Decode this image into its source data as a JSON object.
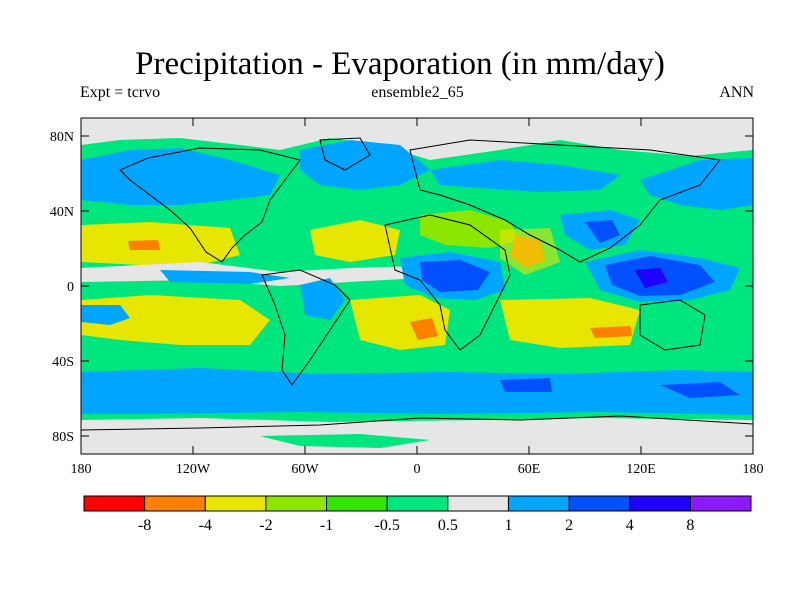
{
  "header": {
    "title": "Precipitation - Evaporation (in mm/day)",
    "experiment": "Expt = tcrvo",
    "ensemble": "ensemble2_65",
    "season": "ANN"
  },
  "axes": {
    "lat_labels": [
      "80N",
      "40N",
      "0",
      "40S",
      "80S"
    ],
    "lon_labels": [
      "180",
      "120W",
      "60W",
      "0",
      "60E",
      "120E",
      "180"
    ]
  },
  "colorbar": {
    "colors": [
      "#ff0000",
      "#ff7f00",
      "#e6e600",
      "#8ce600",
      "#33e600",
      "#00e67f",
      "#e6e6e6",
      "#00a5ff",
      "#0050ff",
      "#1e00ff",
      "#8c19ff"
    ],
    "labels": [
      "-8",
      "-4",
      "-2",
      "-1",
      "-0.5",
      "0.5",
      "1",
      "2",
      "4",
      "8"
    ]
  },
  "regions": {
    "ocean_default": "#00e67f",
    "colors": {
      "red": "#ff0000",
      "orange": "#ff7f00",
      "yellow": "#e6e600",
      "lime": "#8ce600",
      "green": "#33e600",
      "sea": "#00e67f",
      "gray": "#e6e6e6",
      "lightblue": "#00a5ff",
      "blue": "#0050ff",
      "darkblue": "#1e00ff",
      "purple": "#8c19ff"
    }
  }
}
